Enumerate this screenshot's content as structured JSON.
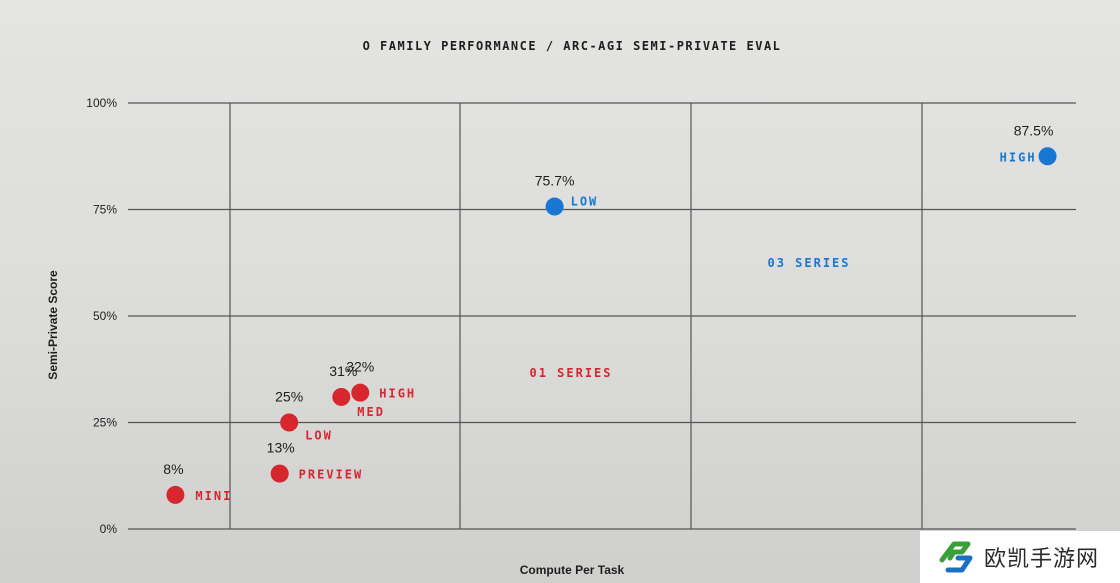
{
  "chart_data": {
    "type": "scatter",
    "title": "O FAMILY PERFORMANCE / ARC-AGI SEMI-PRIVATE EVAL",
    "xlabel": "Compute Per Task",
    "ylabel": "Semi-Private Score",
    "ylim": [
      0,
      100
    ],
    "y_ticks": [
      {
        "value": 0,
        "label": "0%"
      },
      {
        "value": 25,
        "label": "25%"
      },
      {
        "value": 50,
        "label": "50%"
      },
      {
        "value": 75,
        "label": "75%"
      },
      {
        "value": 100,
        "label": "100%"
      }
    ],
    "x_gridlines": 4,
    "grid": true,
    "series": [
      {
        "name": "01 SERIES",
        "color": "#d7262e",
        "points": [
          {
            "label": "MINI",
            "value_label": "8%",
            "y": 8,
            "x": 0.05
          },
          {
            "label": "PREVIEW",
            "value_label": "13%",
            "y": 13,
            "x": 0.16
          },
          {
            "label": "LOW",
            "value_label": "25%",
            "y": 25,
            "x": 0.17
          },
          {
            "label": "MED",
            "value_label": "31%",
            "y": 31,
            "x": 0.225
          },
          {
            "label": "HIGH",
            "value_label": "32%",
            "y": 32,
            "x": 0.245
          }
        ]
      },
      {
        "name": "03 SERIES",
        "color": "#1877d2",
        "points": [
          {
            "label": "LOW",
            "value_label": "75.7%",
            "y": 75.7,
            "x": 0.45
          },
          {
            "label": "HIGH",
            "value_label": "87.5%",
            "y": 87.5,
            "x": 0.97
          }
        ]
      }
    ]
  },
  "watermark": {
    "text": "欧凯手游网",
    "logo": "stylized-g-logo"
  }
}
